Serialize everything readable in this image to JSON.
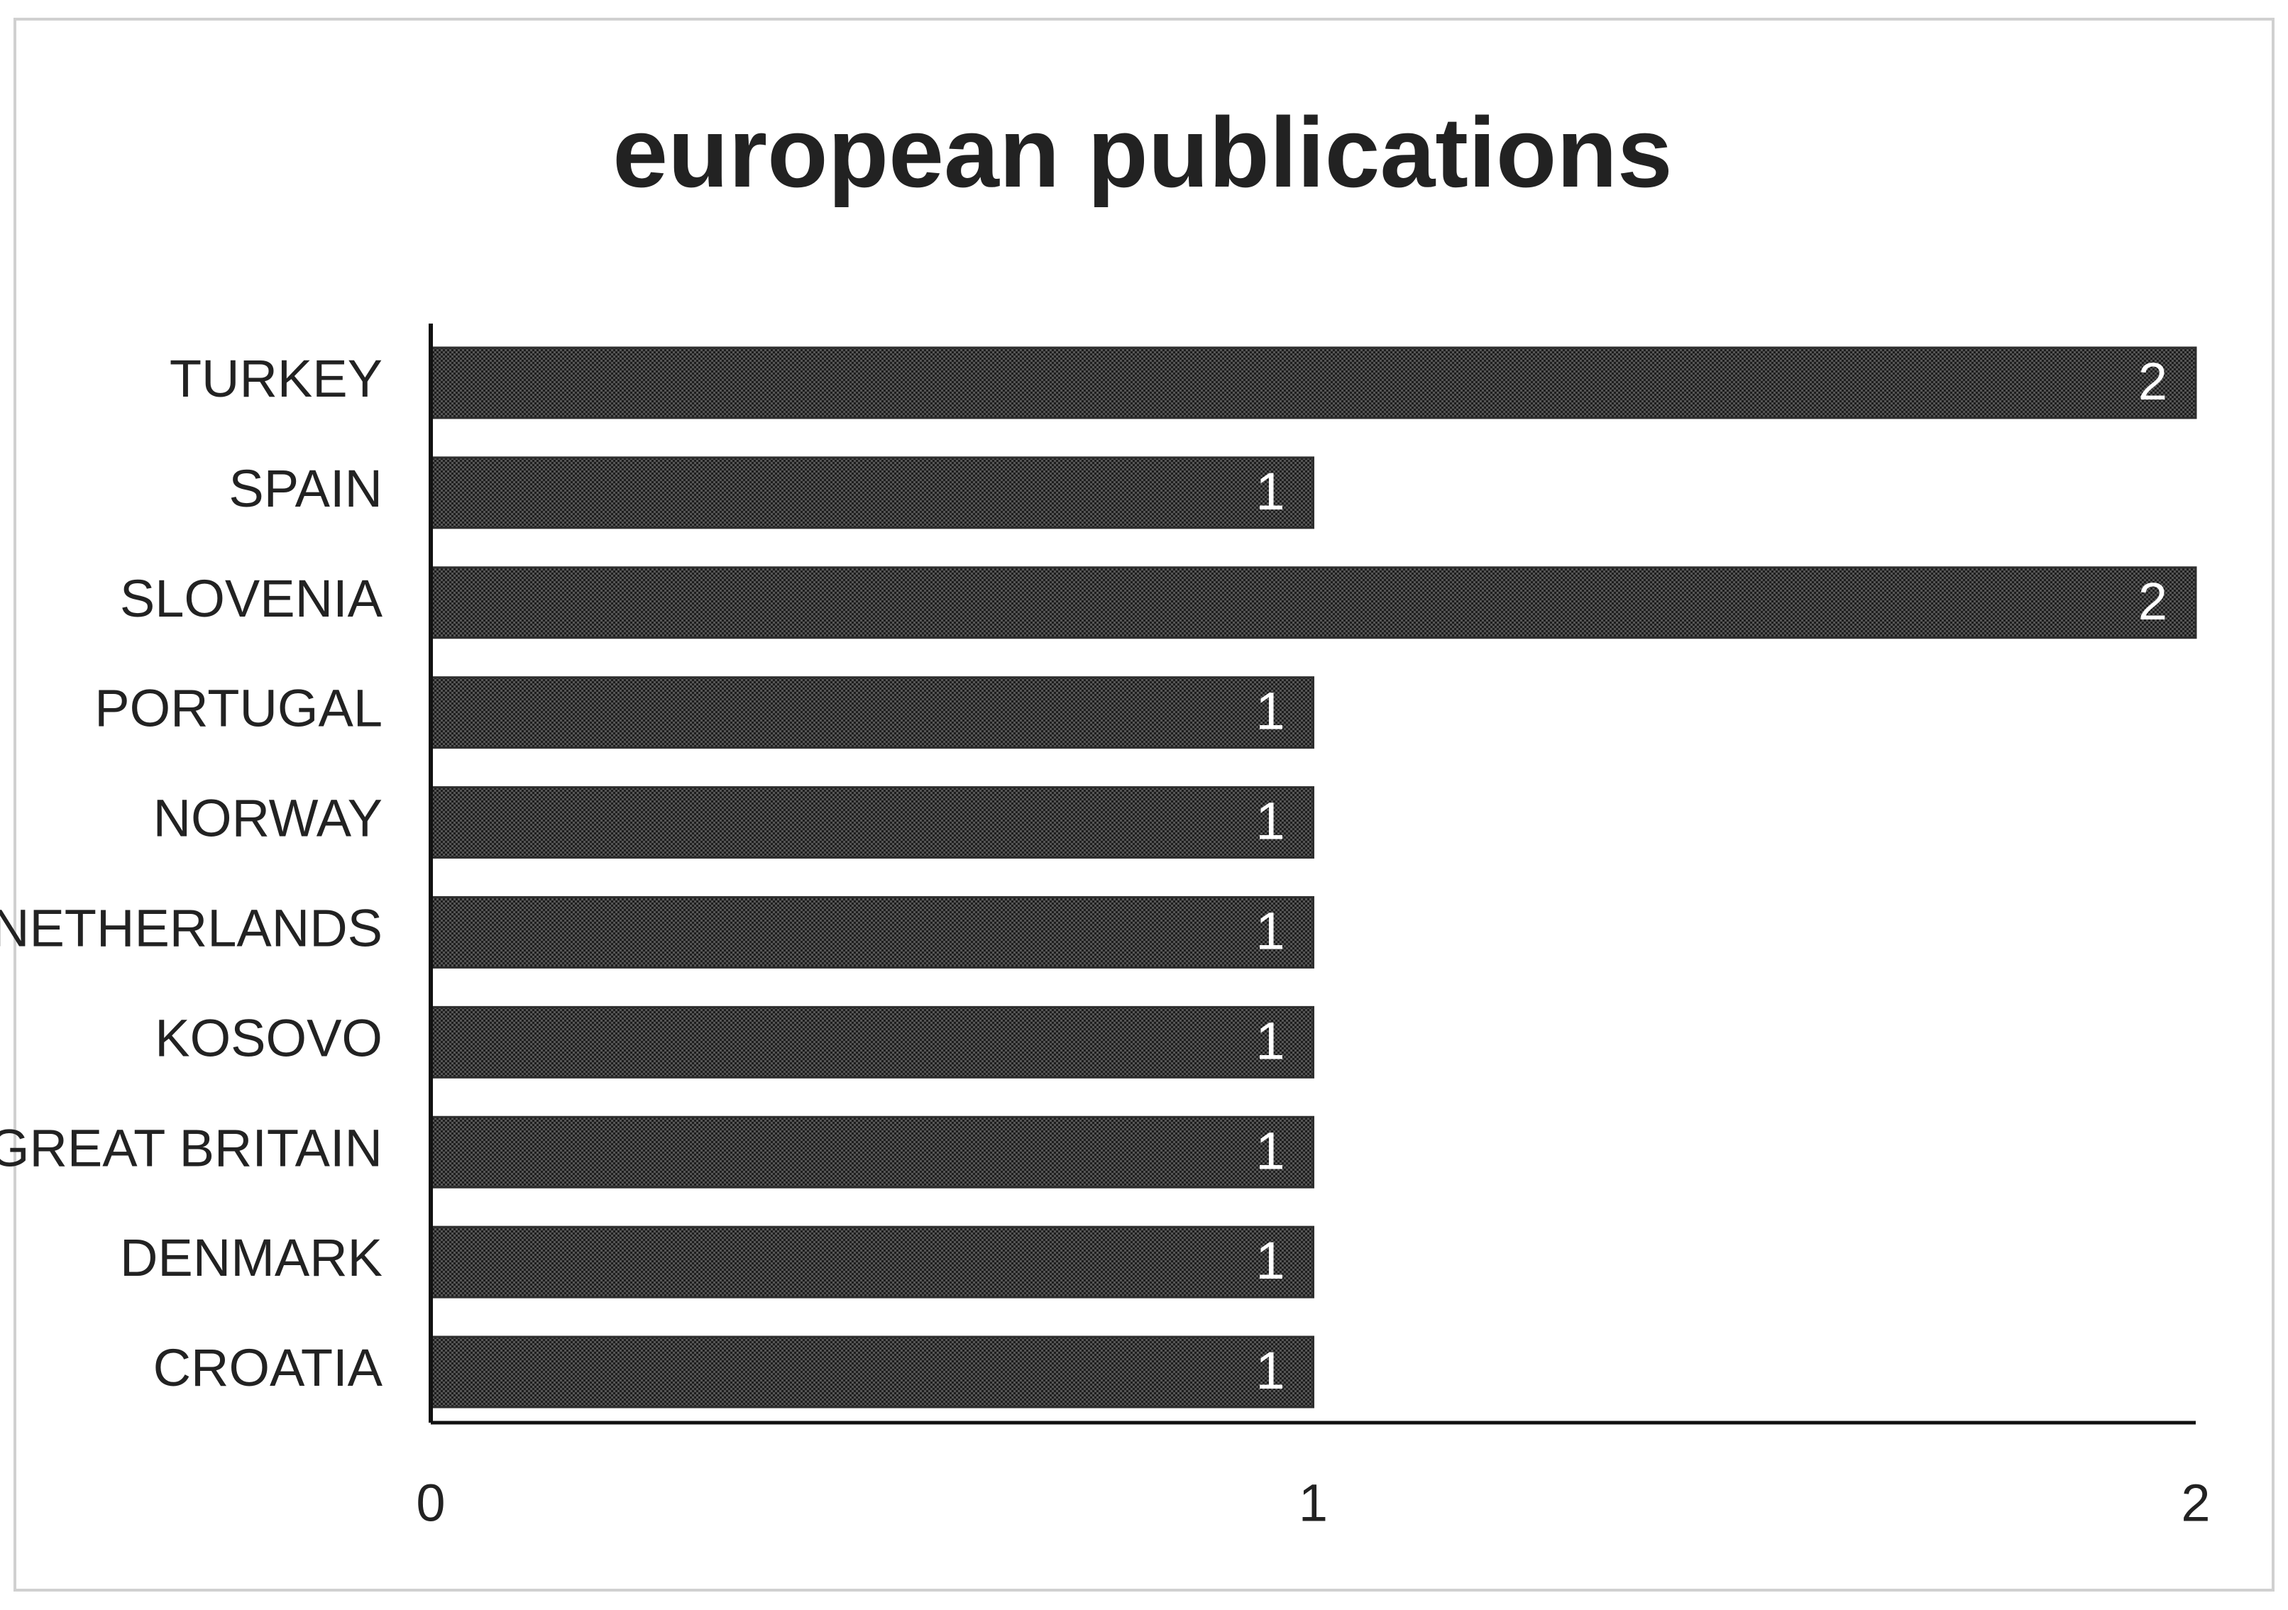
{
  "chart_data": {
    "type": "hbar",
    "title": "european publications",
    "categories": [
      "TURKEY",
      "SPAIN",
      "SLOVENIA",
      "PORTUGAL",
      "NORWAY",
      "NETHERLANDS",
      "KOSOVO",
      "GREAT BRITAIN",
      "DENMARK",
      "CROATIA"
    ],
    "values": [
      2,
      1,
      2,
      1,
      1,
      1,
      1,
      1,
      1,
      1
    ],
    "color": "#2e2e2e",
    "xlim": [
      0,
      2
    ],
    "xticks": [
      0,
      1,
      2
    ],
    "grid": false
  }
}
